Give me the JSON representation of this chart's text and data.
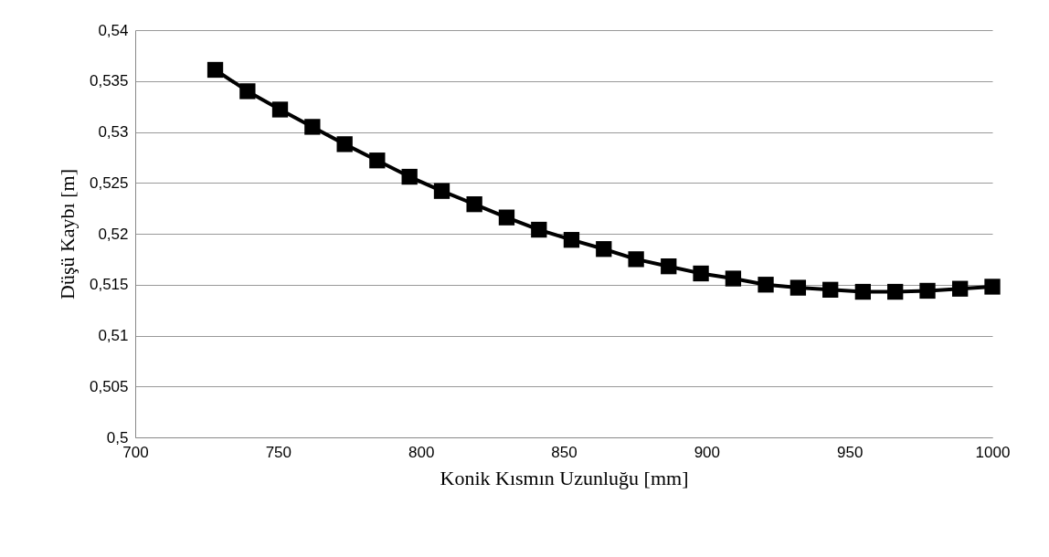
{
  "chart_data": {
    "type": "line",
    "xlabel": "Konik Kısmın Uzunluğu [mm]",
    "ylabel": "Düşü Kaybı [m]",
    "x": [
      728,
      739.3,
      750.7,
      762,
      773.3,
      784.7,
      796,
      807.3,
      818.7,
      830,
      841.3,
      852.7,
      864,
      875.3,
      886.7,
      898,
      909.3,
      920.7,
      932,
      943.3,
      954.7,
      966,
      977.3,
      988.7,
      1000
    ],
    "series": [
      {
        "color": "#000000",
        "values": [
          0.5361,
          0.534,
          0.5322,
          0.5305,
          0.5288,
          0.5272,
          0.5256,
          0.5242,
          0.5229,
          0.5216,
          0.5204,
          0.5194,
          0.5185,
          0.5175,
          0.5168,
          0.5161,
          0.5156,
          0.515,
          0.5147,
          0.5145,
          0.5143,
          0.5143,
          0.5144,
          0.5146,
          0.5148
        ]
      }
    ],
    "xlim": [
      700,
      1000
    ],
    "xticks": [
      700,
      750,
      800,
      850,
      900,
      950,
      1000
    ],
    "ylim": [
      0.5,
      0.54
    ],
    "yticks": [
      {
        "value": 0.5,
        "label": "0,5"
      },
      {
        "value": 0.505,
        "label": "0,505"
      },
      {
        "value": 0.51,
        "label": "0,51"
      },
      {
        "value": 0.515,
        "label": "0,515"
      },
      {
        "value": 0.52,
        "label": "0,52"
      },
      {
        "value": 0.525,
        "label": "0,525"
      },
      {
        "value": 0.53,
        "label": "0,53"
      },
      {
        "value": 0.535,
        "label": "0,535"
      },
      {
        "value": 0.54,
        "label": "0,54"
      }
    ],
    "grid": "y",
    "marker": "square",
    "line_style": "solid"
  }
}
